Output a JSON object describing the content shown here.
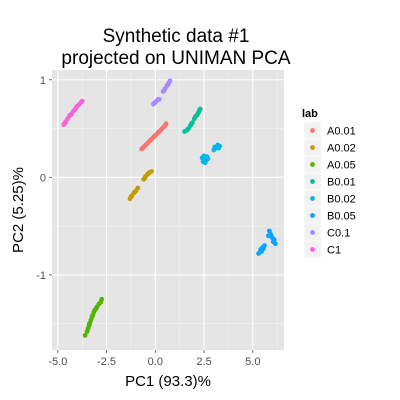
{
  "chart_data": {
    "type": "scatter",
    "title_lines": [
      "Synthetic data #1",
      "projected on UNIMAN PCA"
    ],
    "xlabel": "PC1 (93.3)%",
    "ylabel": "PC2 (5.25)%",
    "xlim": [
      -5.3,
      6.6
    ],
    "ylim": [
      -1.77,
      1.1
    ],
    "xticks": [
      -5.0,
      -2.5,
      0.0,
      2.5,
      5.0
    ],
    "xtick_labels": [
      "-5.0",
      "-2.5",
      "0.0",
      "2.5",
      "5.0"
    ],
    "yticks": [
      -1,
      0,
      1
    ],
    "ytick_labels": [
      "-1",
      "0",
      "1"
    ],
    "grid": true,
    "legend_position": "right",
    "legend_title": "lab",
    "series": [
      {
        "name": "A0.01",
        "color": "#f8766d",
        "points": [
          [
            -0.7,
            0.29
          ],
          [
            -0.6,
            0.31
          ],
          [
            -0.5,
            0.33
          ],
          [
            -0.4,
            0.35
          ],
          [
            -0.3,
            0.37
          ],
          [
            -0.2,
            0.39
          ],
          [
            -0.1,
            0.41
          ],
          [
            0.0,
            0.43
          ],
          [
            0.1,
            0.45
          ],
          [
            0.2,
            0.47
          ],
          [
            0.3,
            0.49
          ],
          [
            0.4,
            0.51
          ],
          [
            0.5,
            0.53
          ],
          [
            0.55,
            0.55
          ],
          [
            -0.65,
            0.3
          ],
          [
            -0.45,
            0.34
          ],
          [
            -0.25,
            0.38
          ],
          [
            -0.05,
            0.42
          ],
          [
            0.15,
            0.46
          ],
          [
            0.35,
            0.5
          ]
        ]
      },
      {
        "name": "A0.02",
        "color": "#c49a00",
        "points": [
          [
            -1.3,
            -0.22
          ],
          [
            -1.2,
            -0.19
          ],
          [
            -1.1,
            -0.16
          ],
          [
            -1.0,
            -0.14
          ],
          [
            -0.9,
            -0.11
          ],
          [
            -1.25,
            -0.2
          ],
          [
            -1.05,
            -0.15
          ],
          [
            -0.6,
            -0.02
          ],
          [
            -0.5,
            0.01
          ],
          [
            -0.4,
            0.03
          ],
          [
            -0.3,
            0.05
          ],
          [
            -0.2,
            0.06
          ],
          [
            -0.55,
            -0.01
          ],
          [
            -0.35,
            0.04
          ]
        ]
      },
      {
        "name": "A0.05",
        "color": "#53b400",
        "points": [
          [
            -3.6,
            -1.62
          ],
          [
            -3.5,
            -1.58
          ],
          [
            -3.45,
            -1.55
          ],
          [
            -3.4,
            -1.52
          ],
          [
            -3.35,
            -1.49
          ],
          [
            -3.3,
            -1.46
          ],
          [
            -3.25,
            -1.43
          ],
          [
            -3.2,
            -1.41
          ],
          [
            -3.15,
            -1.38
          ],
          [
            -3.1,
            -1.36
          ],
          [
            -3.0,
            -1.33
          ],
          [
            -2.9,
            -1.3
          ],
          [
            -2.8,
            -1.28
          ],
          [
            -2.75,
            -1.25
          ],
          [
            -3.38,
            -1.5
          ],
          [
            -3.22,
            -1.42
          ],
          [
            -3.05,
            -1.35
          ]
        ]
      },
      {
        "name": "B0.01",
        "color": "#00c094",
        "points": [
          [
            1.5,
            0.47
          ],
          [
            1.6,
            0.48
          ],
          [
            1.7,
            0.5
          ],
          [
            1.8,
            0.53
          ],
          [
            1.9,
            0.56
          ],
          [
            2.0,
            0.6
          ],
          [
            2.1,
            0.63
          ],
          [
            2.2,
            0.66
          ],
          [
            2.25,
            0.68
          ],
          [
            2.3,
            0.7
          ],
          [
            1.65,
            0.49
          ],
          [
            1.85,
            0.55
          ],
          [
            2.05,
            0.62
          ],
          [
            2.15,
            0.64
          ]
        ]
      },
      {
        "name": "B0.02",
        "color": "#00b6eb",
        "points": [
          [
            2.4,
            0.2
          ],
          [
            2.5,
            0.18
          ],
          [
            2.55,
            0.15
          ],
          [
            2.6,
            0.17
          ],
          [
            2.7,
            0.19
          ],
          [
            2.5,
            0.22
          ],
          [
            2.45,
            0.16
          ],
          [
            2.65,
            0.21
          ],
          [
            3.0,
            0.28
          ],
          [
            3.1,
            0.3
          ],
          [
            3.2,
            0.33
          ],
          [
            3.3,
            0.32
          ],
          [
            3.05,
            0.31
          ],
          [
            3.25,
            0.3
          ]
        ]
      },
      {
        "name": "B0.05",
        "color": "#06a4ff",
        "points": [
          [
            5.3,
            -0.78
          ],
          [
            5.4,
            -0.74
          ],
          [
            5.5,
            -0.72
          ],
          [
            5.6,
            -0.7
          ],
          [
            5.45,
            -0.76
          ],
          [
            5.55,
            -0.73
          ],
          [
            5.8,
            -0.6
          ],
          [
            5.85,
            -0.55
          ],
          [
            5.9,
            -0.58
          ],
          [
            6.0,
            -0.62
          ],
          [
            6.1,
            -0.64
          ],
          [
            6.15,
            -0.68
          ],
          [
            5.95,
            -0.6
          ],
          [
            6.05,
            -0.66
          ]
        ]
      },
      {
        "name": "C0.1",
        "color": "#a58aff",
        "points": [
          [
            -0.1,
            0.75
          ],
          [
            0.0,
            0.77
          ],
          [
            0.1,
            0.79
          ],
          [
            0.2,
            0.8
          ],
          [
            -0.05,
            0.76
          ],
          [
            0.15,
            0.8
          ],
          [
            0.4,
            0.88
          ],
          [
            0.5,
            0.91
          ],
          [
            0.6,
            0.94
          ],
          [
            0.7,
            0.97
          ],
          [
            0.75,
            0.99
          ],
          [
            0.45,
            0.89
          ],
          [
            0.65,
            0.95
          ]
        ]
      },
      {
        "name": "C1",
        "color": "#fb61d7",
        "points": [
          [
            -4.7,
            0.54
          ],
          [
            -4.6,
            0.57
          ],
          [
            -4.5,
            0.6
          ],
          [
            -4.4,
            0.63
          ],
          [
            -4.3,
            0.65
          ],
          [
            -4.2,
            0.68
          ],
          [
            -4.1,
            0.7
          ],
          [
            -4.0,
            0.73
          ],
          [
            -3.9,
            0.75
          ],
          [
            -3.8,
            0.77
          ],
          [
            -3.75,
            0.78
          ],
          [
            -4.65,
            0.55
          ],
          [
            -4.35,
            0.64
          ],
          [
            -4.05,
            0.72
          ]
        ]
      }
    ]
  }
}
